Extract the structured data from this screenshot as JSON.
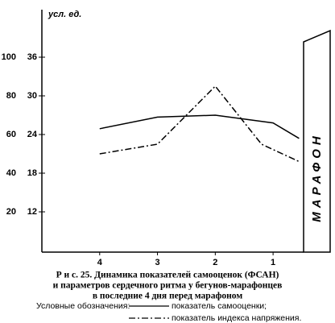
{
  "chart_data": {
    "type": "line",
    "ylabel": "усл. ед.",
    "annotation": "МАРАФОН",
    "caption": [
      "Р и с.  25.  Динамика показателей самооценок (ФСАН)",
      "и параметров сердечного ритма у бегунов-марафонцев",
      "в последние 4 дня перед марафоном"
    ],
    "legend_title": "Условные обозначения:",
    "xlim": [
      5,
      0.5
    ],
    "xticks": [
      4,
      3,
      2,
      1
    ],
    "ylim": [
      0,
      120
    ],
    "yticks": [
      20,
      40,
      60,
      80,
      100
    ],
    "y2lim": [
      6,
      42
    ],
    "y2ticks": [
      12,
      18,
      24,
      30,
      36
    ],
    "series": [
      {
        "name": "показатель самооценки;",
        "color": "#000000",
        "dash": "solid",
        "x": [
          4,
          3,
          2,
          1,
          0.55
        ],
        "values": [
          63,
          69,
          70,
          66,
          58
        ]
      },
      {
        "name": "показатель индекса напряжения.",
        "color": "#000000",
        "dash": "dashdot",
        "x": [
          4,
          3,
          2,
          1.2,
          0.55
        ],
        "values": [
          50,
          55,
          85,
          55,
          46
        ]
      }
    ]
  }
}
